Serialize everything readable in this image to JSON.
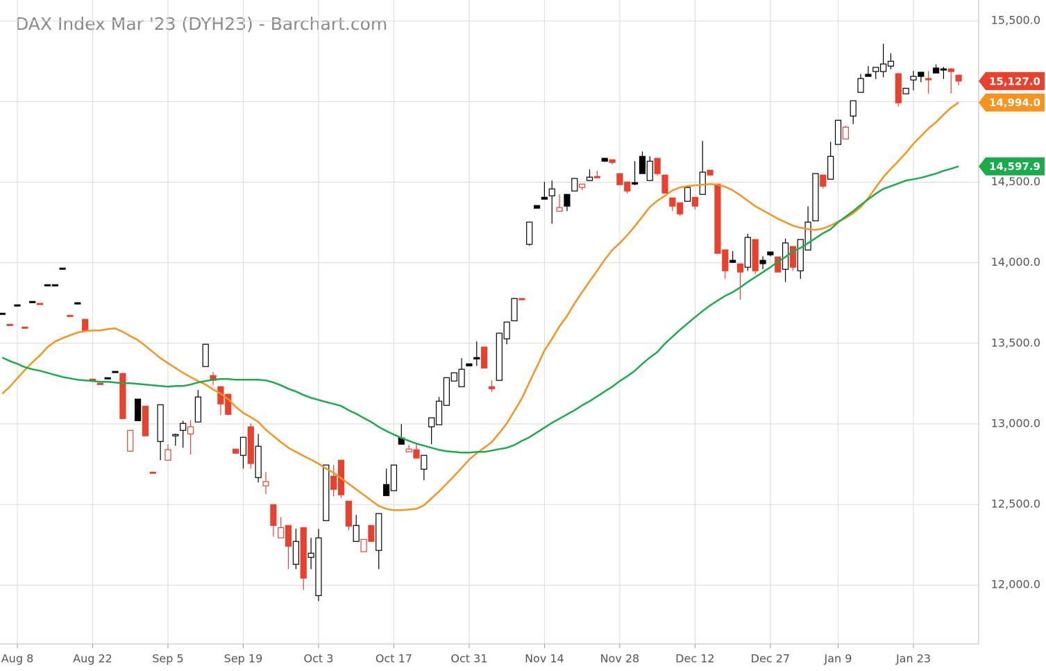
{
  "chart_data": {
    "type": "candlestick",
    "title": "DAX Index Mar '23 (DYH23) - Barchart.com",
    "categories": [
      null,
      null,
      "Aug 8",
      null,
      null,
      null,
      null,
      null,
      null,
      null,
      null,
      null,
      "Aug 22",
      null,
      null,
      null,
      null,
      null,
      null,
      null,
      null,
      null,
      "Sep 5",
      null,
      null,
      null,
      null,
      null,
      null,
      null,
      null,
      null,
      "Sep 19",
      null,
      null,
      null,
      null,
      null,
      null,
      null,
      null,
      null,
      "Oct 3",
      null,
      null,
      null,
      null,
      null,
      null,
      null,
      null,
      null,
      "Oct 17",
      null,
      null,
      null,
      null,
      null,
      null,
      null,
      null,
      null,
      "Oct 31",
      null,
      null,
      null,
      null,
      null,
      null,
      null,
      null,
      null,
      "Nov 14",
      null,
      null,
      null,
      null,
      null,
      null,
      null,
      null,
      null,
      "Nov 28",
      null,
      null,
      null,
      null,
      null,
      null,
      null,
      null,
      null,
      "Dec 12",
      null,
      null,
      null,
      null,
      null,
      null,
      null,
      null,
      null,
      "Dec 27",
      null,
      null,
      null,
      null,
      null,
      null,
      null,
      null,
      "Jan 9",
      null,
      null,
      null,
      null,
      null,
      null,
      null,
      null,
      null,
      "Jan 23",
      null,
      null,
      null,
      null,
      null,
      null
    ],
    "open": [
      13683,
      13614,
      13735,
      13597,
      13756,
      13744,
      13860,
      13860,
      13963,
      13670,
      13752,
      13649,
      13274,
      13248,
      13283,
      13322,
      13313,
      12831,
      13154,
      13110,
      12697,
      12891,
      12775,
      12926,
      12960,
      12938,
      13012,
      13356,
      13300,
      13231,
      13184,
      12844,
      12805,
      12982,
      12667,
      12616,
      12499,
      12293,
      12370,
      12129,
      12357,
      12172,
      11935,
      12400,
      12676,
      12775,
      12521,
      12271,
      12207,
      12370,
      12215,
      12624,
      12586,
      12913,
      12827,
      12840,
      12719,
      12982,
      12995,
      13115,
      13266,
      13231,
      13373,
      13412,
      13477,
      13231,
      13270,
      13528,
      13640,
      13778,
      14114,
      14355,
      14406,
      14415,
      14320,
      14424,
      14445,
      14467,
      14510,
      14535,
      14648,
      14639,
      14553,
      14501,
      14497,
      14660,
      14510,
      14648,
      14544,
      14402,
      14372,
      14381,
      14406,
      14424,
      14574,
      14488,
      14080,
      14015,
      13993,
      13972,
      14144,
      14015,
      14067,
      14036,
      13959,
      14101,
      13950,
      14079,
      14260,
      14544,
      14518,
      14734,
      14768,
      14910,
      15057,
      15169,
      15186,
      15186,
      15220,
      15173,
      15048,
      15134,
      15182,
      15143,
      15208,
      15199,
      15203,
      15164
    ],
    "high": [
      13683,
      13614,
      13735,
      13597,
      13756,
      13744,
      13860,
      13860,
      13963,
      13670,
      13756,
      13649,
      13274,
      13248,
      13283,
      13322,
      13313,
      12960,
      13154,
      13110,
      12697,
      13119,
      12874,
      12940,
      13020,
      13025,
      13210,
      13494,
      13322,
      13231,
      13184,
      12844,
      12917,
      13003,
      12938,
      12702,
      12499,
      12422,
      12370,
      12349,
      12357,
      12293,
      12349,
      12745,
      12745,
      12775,
      12521,
      12435,
      12284,
      12370,
      12444,
      12723,
      12745,
      12999,
      12870,
      12883,
      12805,
      13038,
      13167,
      13287,
      13317,
      13408,
      13373,
      13511,
      13477,
      13270,
      13563,
      13632,
      13778,
      13778,
      14252,
      14355,
      14501,
      14510,
      14424,
      14424,
      14523,
      14488,
      14579,
      14570,
      14648,
      14639,
      14553,
      14501,
      14630,
      14690,
      14660,
      14648,
      14544,
      14402,
      14372,
      14467,
      14406,
      14755,
      14574,
      14488,
      14080,
      14072,
      13993,
      14180,
      14144,
      14040,
      14067,
      14036,
      14150,
      14101,
      14144,
      14350,
      14553,
      14544,
      14750,
      14884,
      14850,
      15005,
      15170,
      15220,
      15212,
      15358,
      15300,
      15173,
      15082,
      15190,
      15182,
      15190,
      15230,
      15215,
      15203,
      15164
    ],
    "low": [
      13683,
      13614,
      13735,
      13597,
      13756,
      13744,
      13860,
      13860,
      13963,
      13670,
      13740,
      13580,
      13274,
      13248,
      13283,
      13322,
      13033,
      12831,
      13020,
      12926,
      12697,
      12775,
      12775,
      12865,
      12852,
      12810,
      13012,
      13356,
      13240,
      13055,
      13055,
      12818,
      12723,
      12723,
      12637,
      12564,
      12301,
      12293,
      12099,
      12099,
      11970,
      12099,
      11901,
      12400,
      12551,
      12540,
      12340,
      12271,
      12207,
      12271,
      12099,
      12555,
      12586,
      12874,
      12827,
      12788,
      12650,
      12874,
      12995,
      13115,
      13266,
      13231,
      13360,
      13360,
      13347,
      13200,
      13270,
      13494,
      13640,
      13770,
      14106,
      14338,
      14394,
      14243,
      14320,
      14320,
      14445,
      14450,
      14510,
      14527,
      14625,
      14610,
      14484,
      14430,
      14480,
      14553,
      14510,
      14540,
      14432,
      14320,
      14290,
      14381,
      14330,
      14424,
      14544,
      14058,
      13900,
      14002,
      13770,
      13950,
      13930,
      13960,
      14040,
      13942,
      13880,
      13950,
      13900,
      14079,
      14260,
      14460,
      14518,
      14734,
      14768,
      14860,
      15057,
      15156,
      15140,
      15150,
      15200,
      14970,
      15048,
      15070,
      15120,
      15050,
      15177,
      15140,
      15050,
      15100
    ],
    "close": [
      13683,
      13614,
      13735,
      13597,
      13756,
      13744,
      13860,
      13860,
      13963,
      13670,
      13744,
      13580,
      13274,
      13248,
      13283,
      13322,
      13033,
      12960,
      13020,
      12926,
      12697,
      13119,
      12840,
      12934,
      13003,
      12982,
      13167,
      13494,
      13270,
      13124,
      13059,
      12818,
      12917,
      12754,
      12861,
      12642,
      12370,
      12357,
      12241,
      12271,
      12043,
      12198,
      12293,
      12745,
      12594,
      12560,
      12366,
      12370,
      12284,
      12271,
      12444,
      12555,
      12745,
      12874,
      12844,
      12788,
      12805,
      13038,
      13141,
      13287,
      13317,
      13339,
      13360,
      13403,
      13347,
      13218,
      13563,
      13632,
      13778,
      13770,
      14252,
      14338,
      14394,
      14458,
      14342,
      14351,
      14523,
      14488,
      14531,
      14527,
      14630,
      14622,
      14484,
      14445,
      14488,
      14553,
      14630,
      14553,
      14432,
      14351,
      14303,
      14467,
      14351,
      14562,
      14544,
      14058,
      13950,
      14002,
      13942,
      14157,
      13950,
      13994,
      14049,
      13942,
      14123,
      13972,
      14144,
      14252,
      14553,
      14475,
      14660,
      14884,
      14841,
      15005,
      15143,
      15156,
      15212,
      15233,
      15250,
      14992,
      15082,
      15156,
      15156,
      15135,
      15177,
      15195,
      15186,
      15127
    ],
    "up_color": "#000000",
    "down_color": "#e8412d",
    "lines": [
      {
        "color": "#f7931e",
        "values": [
          13188,
          13231,
          13283,
          13334,
          13382,
          13425,
          13476,
          13511,
          13532,
          13550,
          13567,
          13576,
          13580,
          13580,
          13588,
          13593,
          13571,
          13545,
          13520,
          13485,
          13446,
          13408,
          13377,
          13347,
          13317,
          13291,
          13266,
          13244,
          13214,
          13188,
          13154,
          13106,
          13068,
          13042,
          13012,
          12964,
          12925,
          12887,
          12852,
          12826,
          12801,
          12779,
          12753,
          12723,
          12697,
          12663,
          12628,
          12594,
          12560,
          12525,
          12491,
          12473,
          12465,
          12465,
          12469,
          12473,
          12495,
          12538,
          12581,
          12628,
          12676,
          12727,
          12779,
          12818,
          12852,
          12887,
          12943,
          13003,
          13080,
          13158,
          13257,
          13356,
          13455,
          13528,
          13606,
          13670,
          13748,
          13817,
          13885,
          13950,
          14019,
          14079,
          14122,
          14170,
          14226,
          14286,
          14346,
          14385,
          14415,
          14449,
          14467,
          14475,
          14480,
          14484,
          14488,
          14484,
          14471,
          14449,
          14419,
          14385,
          14350,
          14325,
          14299,
          14273,
          14251,
          14230,
          14217,
          14208,
          14204,
          14213,
          14230,
          14256,
          14277,
          14307,
          14346,
          14402,
          14467,
          14531,
          14583,
          14630,
          14682,
          14738,
          14785,
          14833,
          14871,
          14919,
          14962,
          14994
        ]
      },
      {
        "color": "#1aab4b",
        "values": [
          13412,
          13390,
          13373,
          13352,
          13339,
          13330,
          13317,
          13304,
          13291,
          13283,
          13274,
          13270,
          13266,
          13261,
          13261,
          13257,
          13253,
          13253,
          13248,
          13244,
          13240,
          13235,
          13231,
          13235,
          13235,
          13244,
          13257,
          13266,
          13274,
          13278,
          13278,
          13274,
          13274,
          13274,
          13274,
          13270,
          13257,
          13240,
          13218,
          13201,
          13179,
          13162,
          13149,
          13136,
          13124,
          13111,
          13085,
          13063,
          13037,
          13012,
          12981,
          12956,
          12934,
          12913,
          12895,
          12878,
          12865,
          12852,
          12839,
          12831,
          12826,
          12822,
          12822,
          12826,
          12826,
          12835,
          12844,
          12852,
          12869,
          12895,
          12917,
          12947,
          12977,
          13007,
          13033,
          13059,
          13085,
          13115,
          13141,
          13171,
          13201,
          13231,
          13266,
          13296,
          13330,
          13373,
          13412,
          13446,
          13498,
          13541,
          13584,
          13623,
          13662,
          13700,
          13735,
          13765,
          13795,
          13817,
          13847,
          13881,
          13911,
          13941,
          13972,
          14006,
          14036,
          14071,
          14092,
          14122,
          14152,
          14183,
          14208,
          14251,
          14286,
          14320,
          14359,
          14393,
          14428,
          14458,
          14475,
          14492,
          14510,
          14518,
          14527,
          14540,
          14553,
          14570,
          14583,
          14597.9
        ]
      }
    ],
    "badges": [
      {
        "value": 15127,
        "label": "15,127.0",
        "color": "#e8412d"
      },
      {
        "value": 14994,
        "label": "14,994.0",
        "color": "#f7931e"
      },
      {
        "value": 14597.9,
        "label": "14,597.9",
        "color": "#1aab4b"
      }
    ],
    "ylim": [
      11635,
      15630
    ],
    "yticks": [
      {
        "value": 12000,
        "label": "12,000.0"
      },
      {
        "value": 12500,
        "label": "12,500.0"
      },
      {
        "value": 13000,
        "label": "13,000.0"
      },
      {
        "value": 13500,
        "label": "13,500.0"
      },
      {
        "value": 14000,
        "label": "14,000.0"
      },
      {
        "value": 14500,
        "label": "14,500.0"
      },
      {
        "value": 15000,
        "label": "15,000.0"
      },
      {
        "value": 15500,
        "label": "15,500.0"
      }
    ],
    "grid": true
  }
}
